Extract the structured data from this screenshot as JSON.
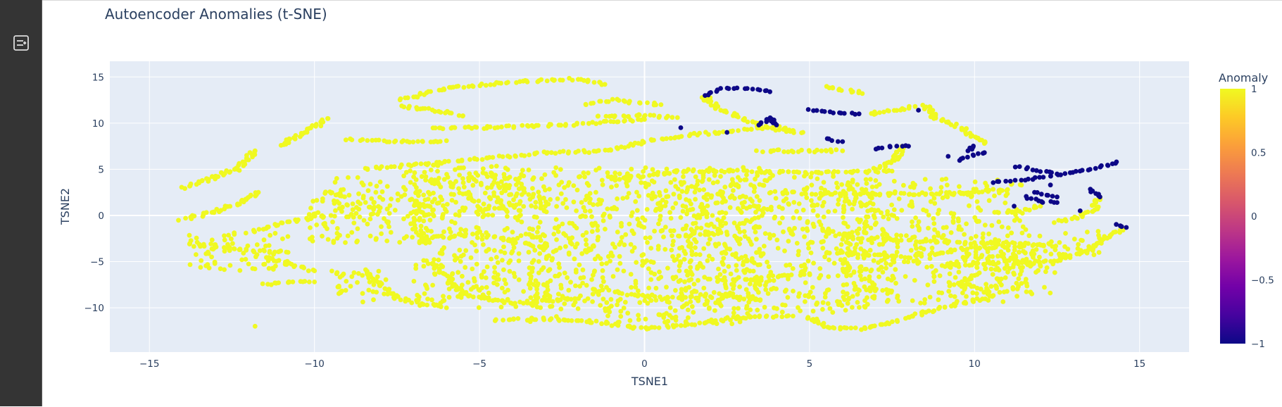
{
  "app": {
    "sidebar_toggle_icon": "sidebar-expand-icon"
  },
  "chart_data": {
    "type": "scatter",
    "title": "Autoencoder Anomalies (t-SNE)",
    "xlabel": "TSNE1",
    "ylabel": "TSNE2",
    "xlim": [
      -16.2,
      16.5
    ],
    "ylim": [
      -14.8,
      16.7
    ],
    "xticks": [
      -15,
      -10,
      -5,
      0,
      5,
      10,
      15
    ],
    "yticks": [
      -10,
      -5,
      0,
      5,
      10,
      15
    ],
    "xtick_labels": [
      "−15",
      "−10",
      "−5",
      "0",
      "5",
      "10",
      "15"
    ],
    "ytick_labels": [
      "−10",
      "−5",
      "0",
      "5",
      "10",
      "15"
    ],
    "grid": true,
    "plot_background": "#e5ecf6",
    "colorscale": {
      "name": "Plasma",
      "title": "Anomaly",
      "range": [
        -1,
        1
      ],
      "ticks": [
        1,
        0.5,
        0,
        -0.5,
        -1
      ],
      "tick_labels": [
        "1",
        "0.5",
        "0",
        "−0.5",
        "−1"
      ],
      "stops": [
        "#0d0887",
        "#46039f",
        "#7201a8",
        "#9c179e",
        "#bd3786",
        "#d8576b",
        "#ed7953",
        "#fb9f3a",
        "#fdca26",
        "#f0f921"
      ]
    },
    "series": [
      {
        "label": "1",
        "color": "#f0f921",
        "curves": [
          [
            [
              -14.0,
              -0.4
            ],
            [
              -13.0,
              0.4
            ],
            [
              -12.3,
              1.3
            ],
            [
              -11.7,
              2.5
            ]
          ],
          [
            [
              -14.0,
              3.0
            ],
            [
              -13.3,
              3.8
            ],
            [
              -12.4,
              5.0
            ],
            [
              -11.8,
              7.0
            ]
          ],
          [
            [
              -11.0,
              7.6
            ],
            [
              -10.3,
              9.0
            ],
            [
              -9.6,
              10.5
            ]
          ],
          [
            [
              -9.0,
              8.2
            ],
            [
              -8.0,
              8.1
            ],
            [
              -7.0,
              8.0
            ],
            [
              -6.0,
              8.1
            ]
          ],
          [
            [
              -7.4,
              11.8
            ],
            [
              -6.5,
              11.5
            ],
            [
              -5.5,
              10.8
            ]
          ],
          [
            [
              -7.4,
              12.5
            ],
            [
              -6.0,
              13.8
            ],
            [
              -4.0,
              14.5
            ],
            [
              -2.0,
              14.8
            ],
            [
              -1.2,
              14.2
            ]
          ],
          [
            [
              -1.8,
              12.0
            ],
            [
              -1.0,
              12.5
            ],
            [
              0.5,
              12.0
            ]
          ],
          [
            [
              -1.5,
              10.8
            ],
            [
              0.0,
              10.8
            ],
            [
              1.0,
              10.6
            ]
          ],
          [
            [
              -6.5,
              9.4
            ],
            [
              -4.0,
              9.6
            ],
            [
              -2.0,
              9.9
            ],
            [
              0.0,
              10.4
            ]
          ],
          [
            [
              -8.5,
              5.0
            ],
            [
              -5.0,
              6.1
            ],
            [
              -3.0,
              6.8
            ],
            [
              -1.0,
              7.0
            ],
            [
              0.0,
              8.0
            ],
            [
              1.5,
              8.8
            ],
            [
              3.0,
              9.2
            ],
            [
              4.0,
              9.6
            ],
            [
              4.5,
              9.2
            ]
          ],
          [
            [
              2.7,
              10.9
            ],
            [
              3.4,
              9.8
            ],
            [
              4.2,
              9.2
            ],
            [
              4.8,
              9.0
            ]
          ],
          [
            [
              1.8,
              12.9
            ],
            [
              2.3,
              11.5
            ],
            [
              2.8,
              10.9
            ]
          ],
          [
            [
              3.5,
              7.0
            ],
            [
              5.0,
              7.0
            ],
            [
              6.0,
              7.0
            ]
          ],
          [
            [
              5.5,
              14.0
            ],
            [
              6.6,
              13.2
            ]
          ],
          [
            [
              6.8,
              11.0
            ],
            [
              8.2,
              11.8
            ]
          ],
          [
            [
              8.5,
              12.0
            ],
            [
              8.8,
              10.6
            ],
            [
              9.4,
              9.8
            ],
            [
              10.0,
              8.5
            ],
            [
              10.3,
              7.8
            ]
          ],
          [
            [
              7.8,
              7.5
            ],
            [
              7.6,
              6.0
            ],
            [
              7.0,
              5.0
            ]
          ],
          [
            [
              -13.5,
              -3.0
            ],
            [
              -12.0,
              -3.8
            ],
            [
              -10.8,
              -4.0
            ]
          ],
          [
            [
              -11.5,
              -4.5
            ],
            [
              -11.0,
              -5.0
            ],
            [
              -10.0,
              -6.0
            ]
          ],
          [
            [
              -11.5,
              -7.5
            ],
            [
              -11.0,
              -7.2
            ],
            [
              -10.0,
              -7.2
            ]
          ],
          [
            [
              -12.0,
              -1.8
            ],
            [
              -10.5,
              -0.5
            ],
            [
              -9.5,
              0.0
            ]
          ],
          [
            [
              -8.5,
              -6.0
            ],
            [
              -7.5,
              -9.0
            ],
            [
              -6.0,
              -10.0
            ]
          ],
          [
            [
              -6.5,
              -5.0
            ],
            [
              -5.5,
              -8.5
            ],
            [
              -4.0,
              -9.5
            ],
            [
              -2.0,
              -9.0
            ]
          ],
          [
            [
              -6.8,
              -2.5
            ],
            [
              -5.0,
              -2.0
            ],
            [
              -3.0,
              -3.5
            ]
          ],
          [
            [
              -4.5,
              -11.3
            ],
            [
              -3.0,
              -11.2
            ],
            [
              -1.5,
              -11.5
            ],
            [
              0.0,
              -12.3
            ],
            [
              1.5,
              -11.8
            ],
            [
              3.0,
              -11.0
            ],
            [
              4.5,
              -10.9
            ]
          ],
          [
            [
              5.0,
              -11.0
            ],
            [
              5.5,
              -12.2
            ],
            [
              6.5,
              -12.3
            ],
            [
              7.5,
              -11.5
            ],
            [
              8.0,
              -11.0
            ],
            [
              9.0,
              -10.0
            ],
            [
              10.5,
              -8.8
            ],
            [
              10.3,
              -8.0
            ],
            [
              9.5,
              -7.5
            ],
            [
              10.0,
              -6.5
            ]
          ],
          [
            [
              2.3,
              -8.5
            ],
            [
              3.0,
              -9.0
            ],
            [
              3.5,
              -9.2
            ]
          ],
          [
            [
              3.0,
              -7.0
            ],
            [
              4.0,
              -6.5
            ],
            [
              5.0,
              -6.3
            ]
          ],
          [
            [
              -1.5,
              -8.0
            ],
            [
              0.5,
              -9.0
            ],
            [
              2.0,
              -8.8
            ]
          ],
          [
            [
              -1.0,
              3.8
            ],
            [
              1.0,
              4.8
            ],
            [
              3.0,
              4.8
            ],
            [
              5.0,
              4.6
            ],
            [
              7.5,
              4.8
            ]
          ],
          [
            [
              3.8,
              2.5
            ],
            [
              6.0,
              2.3
            ],
            [
              8.5,
              2.3
            ],
            [
              10.0,
              2.5
            ],
            [
              11.0,
              2.8
            ]
          ],
          [
            [
              5.5,
              -1.5
            ],
            [
              6.5,
              -2.5
            ],
            [
              8.0,
              -2.7
            ],
            [
              9.5,
              -3.0
            ],
            [
              11.0,
              -3.0
            ],
            [
              12.0,
              -3.2
            ]
          ],
          [
            [
              5.5,
              -4.0
            ],
            [
              8.0,
              -4.5
            ],
            [
              10.0,
              -3.5
            ],
            [
              11.5,
              -3.3
            ]
          ],
          [
            [
              9.0,
              -5.5
            ],
            [
              11.0,
              -5.0
            ],
            [
              12.5,
              -5.0
            ],
            [
              13.5,
              -3.5
            ],
            [
              14.0,
              -2.2
            ],
            [
              14.5,
              -1.6
            ]
          ],
          [
            [
              10.5,
              0.3
            ],
            [
              11.5,
              0.6
            ],
            [
              12.0,
              1.0
            ]
          ],
          [
            [
              12.5,
              -0.8
            ],
            [
              13.0,
              -0.3
            ],
            [
              13.6,
              0.5
            ],
            [
              13.8,
              2.0
            ]
          ],
          [
            [
              11.0,
              -4.5
            ],
            [
              12.0,
              -5.5
            ]
          ],
          [
            [
              -11.8,
              -12.0
            ]
          ]
        ],
        "blobs": [
          [
            -9.5,
            -8.0,
            -0.2,
            4.3
          ],
          [
            -7.0,
            -3.0,
            -10.0,
            4.8
          ],
          [
            -3.5,
            3.5,
            -11.8,
            5.2
          ],
          [
            1.0,
            7.0,
            -10.5,
            4.8
          ],
          [
            6.0,
            11.5,
            -9.5,
            4.0
          ],
          [
            -10.2,
            -6.5,
            -3.0,
            3.2
          ],
          [
            -13.8,
            -10.8,
            -6.0,
            -1.8
          ],
          [
            -7.5,
            -3.5,
            0.0,
            5.5
          ],
          [
            10.0,
            12.5,
            -8.5,
            -3.0
          ],
          [
            11.5,
            13.8,
            -4.8,
            -1.5
          ],
          [
            -9.5,
            -7.8,
            -9.6,
            -6.0
          ]
        ]
      },
      {
        "label": "-1",
        "color": "#0d0887",
        "curves": [
          [
            [
              1.8,
              13.0
            ],
            [
              2.3,
              13.7
            ],
            [
              3.0,
              13.8
            ],
            [
              3.5,
              13.6
            ],
            [
              3.8,
              13.4
            ]
          ],
          [
            [
              5.0,
              11.4
            ],
            [
              5.5,
              11.2
            ],
            [
              6.0,
              11.1
            ],
            [
              6.5,
              11.0
            ]
          ],
          [
            [
              5.5,
              8.3
            ],
            [
              6.0,
              8.0
            ]
          ],
          [
            [
              7.0,
              7.2
            ],
            [
              7.5,
              7.5
            ],
            [
              8.0,
              7.5
            ]
          ],
          [
            [
              9.5,
              6.0
            ],
            [
              10.0,
              6.6
            ],
            [
              10.3,
              6.8
            ]
          ],
          [
            [
              10.0,
              7.5
            ],
            [
              9.8,
              7.0
            ]
          ],
          [
            [
              10.5,
              3.6
            ],
            [
              11.5,
              3.8
            ],
            [
              12.5,
              4.4
            ],
            [
              13.2,
              4.8
            ],
            [
              14.0,
              5.4
            ],
            [
              14.3,
              5.8
            ]
          ],
          [
            [
              11.3,
              5.3
            ],
            [
              12.0,
              4.8
            ],
            [
              12.5,
              4.5
            ]
          ],
          [
            [
              11.5,
              2.0
            ],
            [
              12.0,
              1.5
            ],
            [
              12.5,
              1.4
            ]
          ],
          [
            [
              11.8,
              2.5
            ],
            [
              12.5,
              2.0
            ]
          ],
          [
            [
              13.5,
              2.8
            ],
            [
              13.8,
              2.0
            ]
          ],
          [
            [
              14.3,
              -1.0
            ],
            [
              14.6,
              -1.3
            ]
          ],
          [
            [
              13.2,
              0.5
            ]
          ],
          [
            [
              1.1,
              9.5
            ]
          ],
          [
            [
              2.5,
              9.0
            ]
          ],
          [
            [
              3.5,
              9.8
            ],
            [
              3.8,
              10.6
            ],
            [
              4.0,
              9.8
            ]
          ],
          [
            [
              8.3,
              11.4
            ]
          ],
          [
            [
              9.2,
              6.4
            ]
          ],
          [
            [
              11.2,
              1.0
            ]
          ],
          [
            [
              12.3,
              3.3
            ]
          ]
        ]
      }
    ]
  }
}
